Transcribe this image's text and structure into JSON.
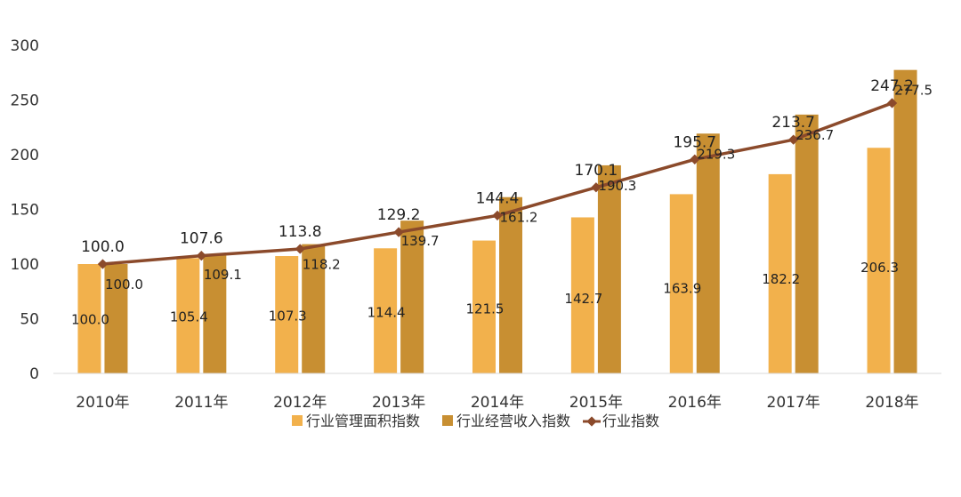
{
  "chart_data": {
    "type": "bar",
    "categories": [
      "2010年",
      "2011年",
      "2012年",
      "2013年",
      "2014年",
      "2015年",
      "2016年",
      "2017年",
      "2018年"
    ],
    "series": [
      {
        "name": "行业管理面积指数",
        "kind": "bar",
        "color": "#F2B14C",
        "values": [
          100.0,
          105.4,
          107.3,
          114.4,
          121.5,
          142.7,
          163.9,
          182.2,
          206.3
        ],
        "labels": [
          "100.0",
          "105.4",
          "107.3",
          "114.4",
          "121.5",
          "142.7",
          "163.9",
          "182.2",
          "206.3"
        ]
      },
      {
        "name": "行业经营收入指数",
        "kind": "bar",
        "color": "#C88F32",
        "values": [
          100.0,
          109.1,
          118.2,
          139.7,
          161.2,
          190.3,
          219.3,
          236.7,
          277.5
        ],
        "labels": [
          "100.0",
          "109.1",
          "118.2",
          "139.7",
          "161.2",
          "190.3",
          "219.3",
          "236.7",
          "277.5"
        ]
      },
      {
        "name": "行业指数",
        "kind": "line",
        "color": "#8B4A2B",
        "values": [
          100.0,
          107.6,
          113.8,
          129.2,
          144.4,
          170.1,
          195.7,
          213.7,
          247.2
        ],
        "labels": [
          "100.0",
          "107.6",
          "113.8",
          "129.2",
          "144.4",
          "170.1",
          "195.7",
          "213.7",
          "247.2"
        ]
      }
    ],
    "ylim": [
      0,
      300
    ],
    "yticks": [
      "0",
      "50",
      "100",
      "150",
      "200",
      "250",
      "300"
    ],
    "legend_position": "bottom",
    "grid": false
  }
}
